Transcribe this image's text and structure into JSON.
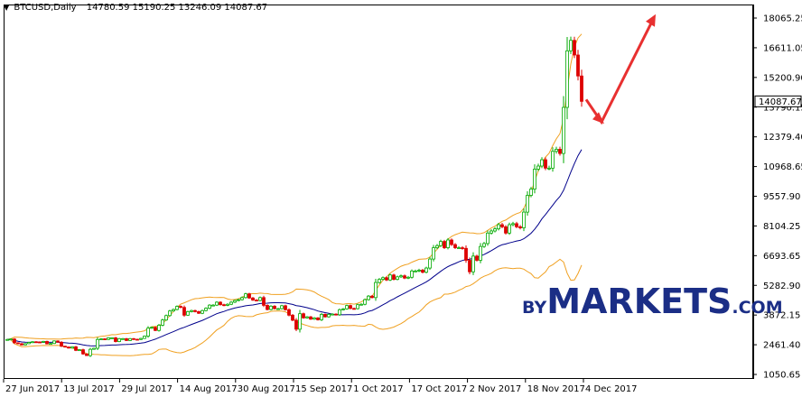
{
  "header": {
    "symbol": "BTCUSD,Daily",
    "ohlc": "14780.59 15190.25 13246.09 14087.67"
  },
  "watermark": {
    "prefix": "BY",
    "main": "MARKETS",
    "suffix": ".COM"
  },
  "colors": {
    "bull": "#00aa00",
    "bear": "#dd0000",
    "bands": "#f0a020",
    "ma": "#00008b",
    "arrow": "#e83030",
    "grid_border": "#000000",
    "watermark": "#1b2e86"
  },
  "chart_data": {
    "type": "candlestick",
    "title": "BTCUSD,Daily",
    "ylim": [
      1050.65,
      18065.25
    ],
    "y_ticks": [
      "18065.25",
      "16611.05",
      "15200.90",
      "13790.15",
      "12379.40",
      "10968.65",
      "9557.90",
      "8104.25",
      "6693.65",
      "5282.90",
      "3872.15",
      "2461.40",
      "1050.65"
    ],
    "x_ticks": [
      "27 Jun 2017",
      "13 Jul 2017",
      "29 Jul 2017",
      "14 Aug 2017",
      "30 Aug 2017",
      "15 Sep 2017",
      "1 Oct 2017",
      "17 Oct 2017",
      "2 Nov 2017",
      "18 Nov 2017",
      "4 Dec 2017"
    ],
    "last_price": "14087.67",
    "start_date": "2017-06-22",
    "end_date": "2017-12-11",
    "close": [
      2720,
      2740,
      2560,
      2520,
      2460,
      2520,
      2580,
      2610,
      2600,
      2590,
      2630,
      2510,
      2530,
      2650,
      2590,
      2400,
      2360,
      2310,
      2370,
      2200,
      2230,
      2030,
      1950,
      2250,
      2300,
      2720,
      2750,
      2720,
      2800,
      2800,
      2620,
      2760,
      2760,
      2670,
      2760,
      2730,
      2720,
      2770,
      2880,
      3260,
      3300,
      3150,
      3400,
      3650,
      3860,
      4080,
      4150,
      4300,
      4250,
      3880,
      4050,
      4100,
      4050,
      3970,
      4100,
      4210,
      4360,
      4360,
      4500,
      4380,
      4350,
      4400,
      4500,
      4580,
      4620,
      4720,
      4900,
      4700,
      4600,
      4580,
      4720,
      4350,
      4150,
      4310,
      4190,
      4190,
      4330,
      4140,
      3880,
      3640,
      3210,
      3950,
      3750,
      3800,
      3690,
      3750,
      3660,
      3920,
      3800,
      3920,
      3930,
      3900,
      4140,
      4180,
      4340,
      4200,
      4190,
      4380,
      4400,
      4620,
      4790,
      4720,
      5440,
      5590,
      5670,
      5560,
      5800,
      5590,
      5710,
      5760,
      5650,
      5690,
      5990,
      5990,
      6030,
      5930,
      6130,
      6560,
      7100,
      7200,
      7400,
      7100,
      7470,
      7250,
      7100,
      7100,
      7070,
      6500,
      5950,
      6700,
      6500,
      7160,
      7300,
      7800,
      7900,
      8000,
      8200,
      8100,
      7800,
      8200,
      8250,
      8100,
      8050,
      8800,
      9600,
      9900,
      10850,
      11000,
      11300,
      10900,
      10900,
      11700,
      11800,
      11600,
      13800,
      16500,
      17000,
      16300,
      15300,
      14088
    ],
    "ma_period": 20,
    "bb_period": 20,
    "bb_dev": 2,
    "annotation": "forecast arrow: dip toward ~13100 then rise toward ~18200"
  }
}
